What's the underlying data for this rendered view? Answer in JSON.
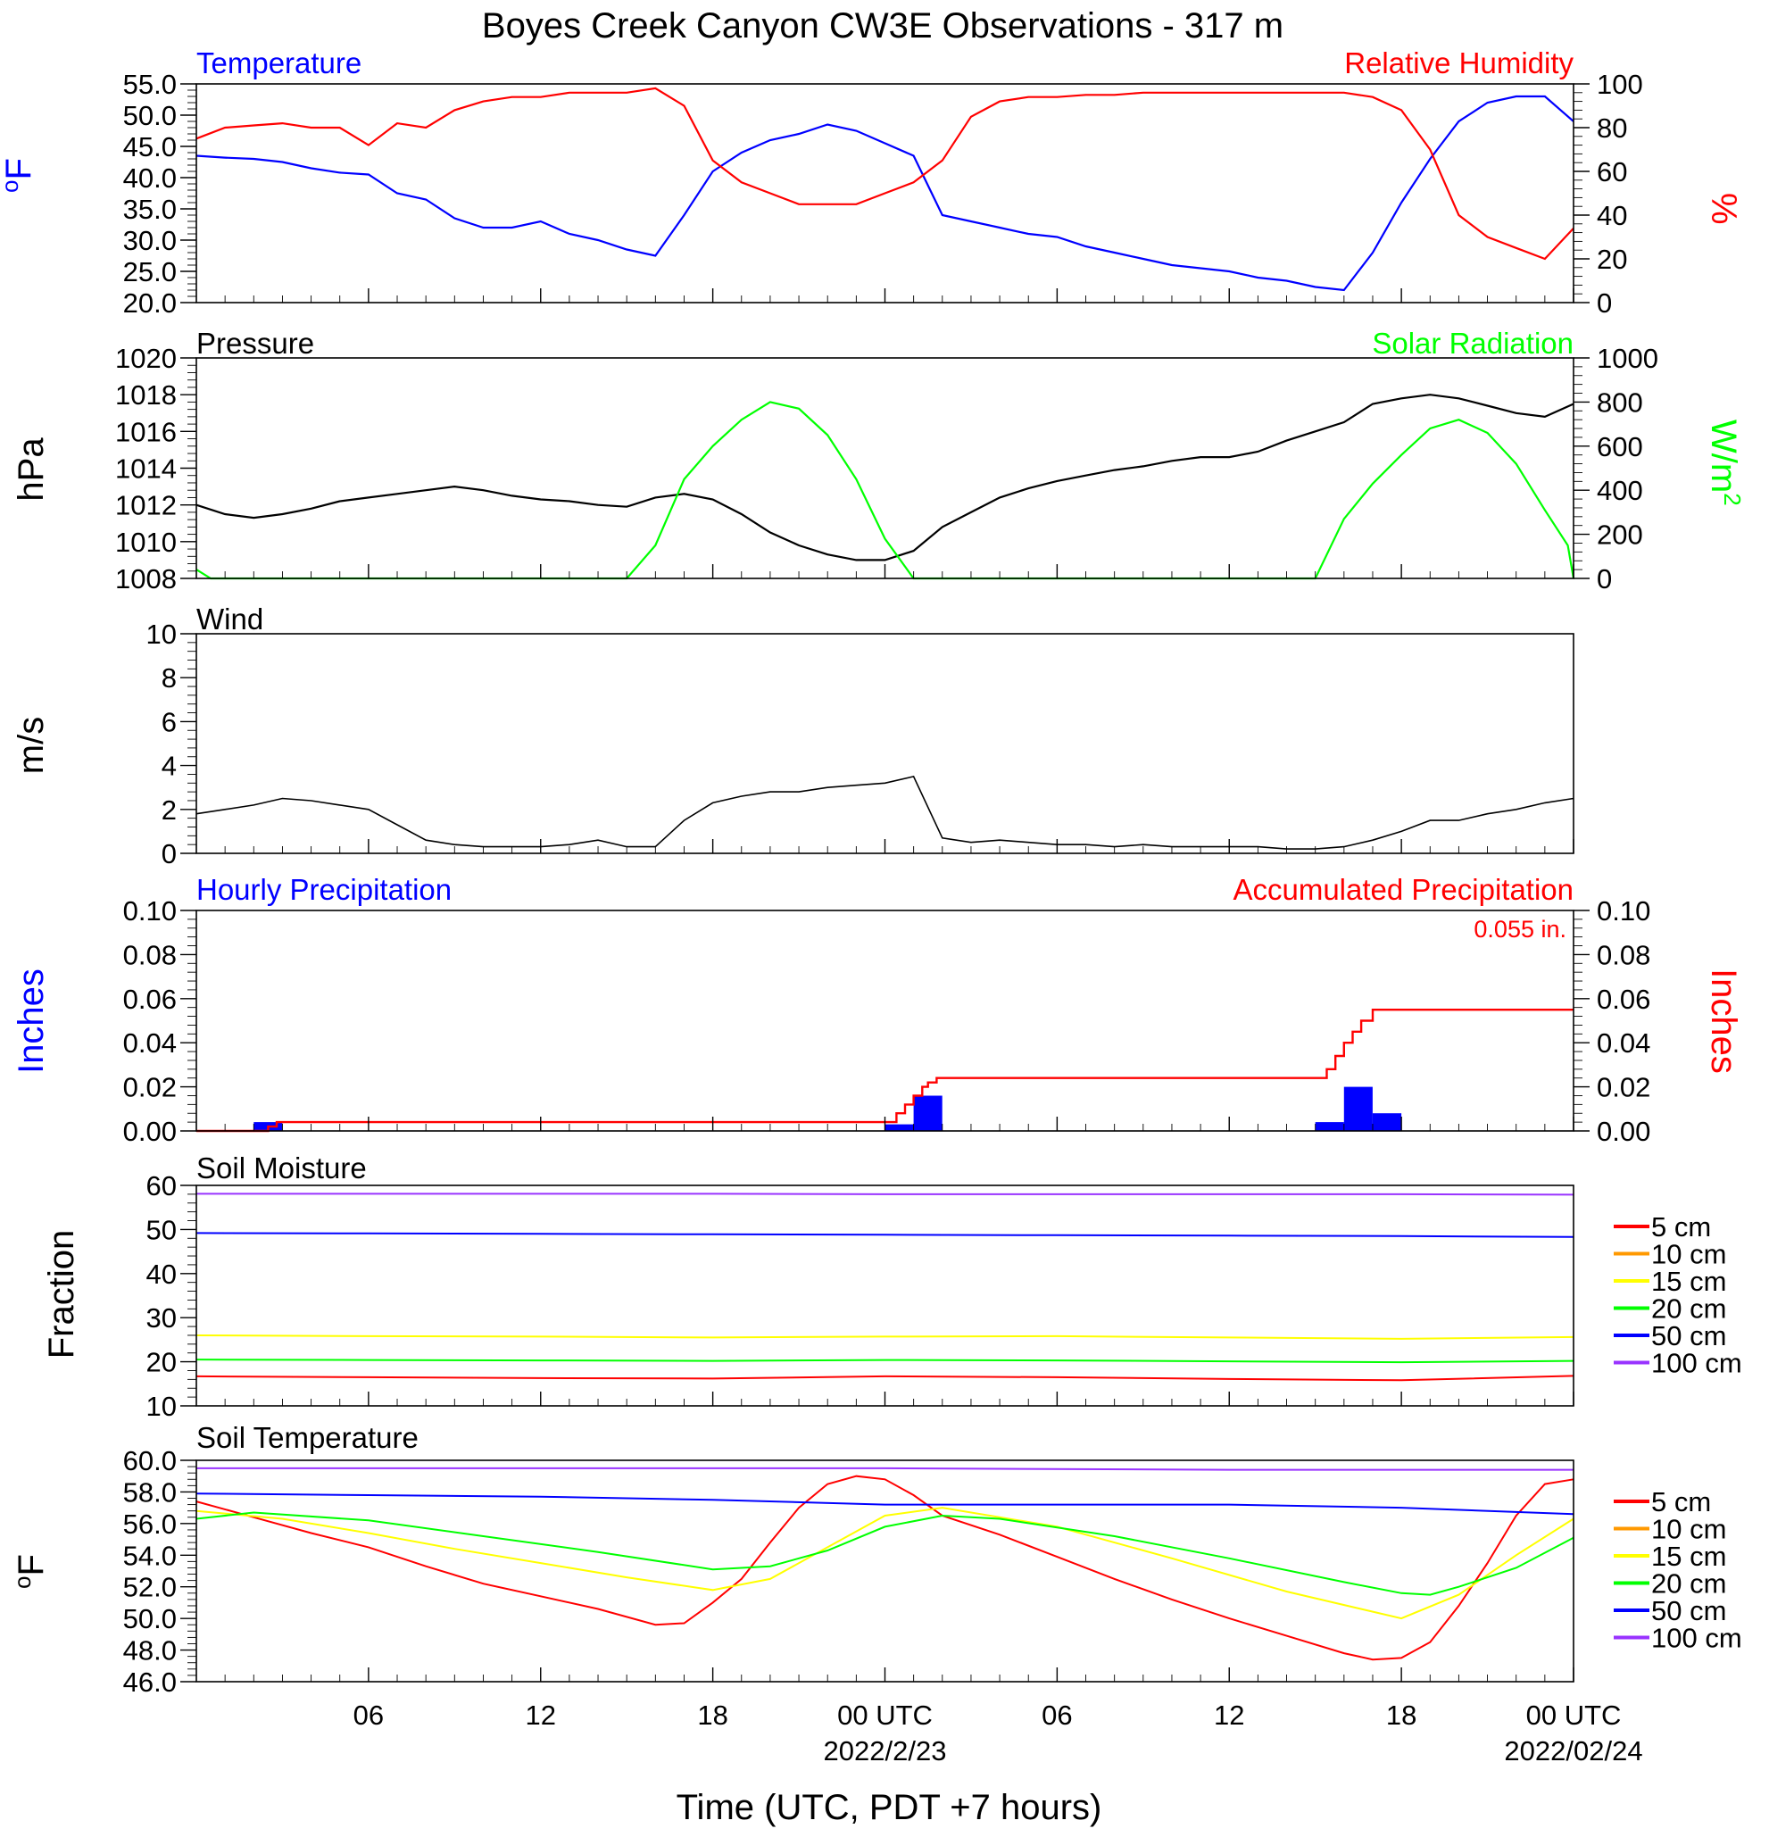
{
  "title": "Boyes Creek Canyon CW3E Observations - 317 m",
  "xlabel": "Time (UTC, PDT +7 hours)",
  "xaxis": {
    "range_hours": [
      0,
      48
    ],
    "ticks": [
      {
        "h": 6,
        "label": "06"
      },
      {
        "h": 12,
        "label": "12"
      },
      {
        "h": 18,
        "label": "18"
      },
      {
        "h": 24,
        "label": "00 UTC",
        "date": "2022/2/23"
      },
      {
        "h": 30,
        "label": "06"
      },
      {
        "h": 36,
        "label": "12"
      },
      {
        "h": 42,
        "label": "18"
      },
      {
        "h": 48,
        "label": "00 UTC",
        "date": "2022/02/24"
      }
    ]
  },
  "colors": {
    "blue": "#0000ff",
    "red": "#ff0000",
    "green": "#00ff00",
    "black": "#000000"
  },
  "panels": {
    "temp_rh": {
      "left_title": "Temperature",
      "right_title": "Relative Humidity",
      "left_unit": "oF",
      "right_unit": "%",
      "left_ticks": [
        "20.0",
        "25.0",
        "30.0",
        "35.0",
        "40.0",
        "45.0",
        "50.0",
        "55.0"
      ],
      "right_ticks": [
        "0",
        "20",
        "40",
        "60",
        "80",
        "100"
      ]
    },
    "pressure_solar": {
      "left_title": "Pressure",
      "right_title": "Solar Radiation",
      "left_unit": "hPa",
      "right_unit": "W/m2",
      "left_ticks": [
        "1008",
        "1010",
        "1012",
        "1014",
        "1016",
        "1018",
        "1020"
      ],
      "right_ticks": [
        "0",
        "200",
        "400",
        "600",
        "800",
        "1000"
      ]
    },
    "wind": {
      "left_title": "Wind",
      "left_unit": "m/s",
      "left_ticks": [
        "0",
        "2",
        "4",
        "6",
        "8",
        "10"
      ]
    },
    "precip": {
      "left_title": "Hourly Precipitation",
      "right_title": "Accumulated Precipitation",
      "total_label": "0.055 in.",
      "left_unit": "Inches",
      "right_unit": "Inches",
      "left_ticks": [
        "0.00",
        "0.02",
        "0.04",
        "0.06",
        "0.08",
        "0.10"
      ],
      "right_ticks": [
        "0.00",
        "0.02",
        "0.04",
        "0.06",
        "0.08",
        "0.10"
      ]
    },
    "soil_moisture": {
      "left_title": "Soil Moisture",
      "left_unit": "Fraction",
      "left_ticks": [
        "10",
        "20",
        "30",
        "40",
        "50",
        "60"
      ]
    },
    "soil_temp": {
      "left_title": "Soil Temperature",
      "left_unit": "oF",
      "left_ticks": [
        "46.0",
        "48.0",
        "50.0",
        "52.0",
        "54.0",
        "56.0",
        "58.0",
        "60.0"
      ]
    }
  },
  "legend": [
    {
      "label": "5 cm",
      "color": "#ff0000"
    },
    {
      "label": "10 cm",
      "color": "#ff9900"
    },
    {
      "label": "15 cm",
      "color": "#ffff00"
    },
    {
      "label": "20 cm",
      "color": "#00ff00"
    },
    {
      "label": "50 cm",
      "color": "#0000ff"
    },
    {
      "label": "100 cm",
      "color": "#9933ff"
    }
  ],
  "chart_data": [
    {
      "type": "line",
      "title": "Temperature / Relative Humidity",
      "x_units": "hours since 2022-02-22 00 UTC",
      "ylim": [
        20,
        55
      ],
      "y2lim": [
        0,
        100
      ],
      "series": [
        {
          "name": "Temperature",
          "axis": "left",
          "color": "#0000ff",
          "x": [
            0,
            1,
            2,
            3,
            4,
            5,
            6,
            7,
            8,
            9,
            10,
            11,
            12,
            13,
            14,
            15,
            16,
            17,
            18,
            19,
            20,
            21,
            22,
            23,
            24,
            25,
            26,
            27,
            28,
            29,
            30,
            31,
            32,
            33,
            34,
            35,
            36,
            37,
            38,
            39,
            40,
            41,
            42,
            43,
            44,
            45,
            46,
            47,
            48
          ],
          "y": [
            43.5,
            43.2,
            43,
            42.5,
            41.5,
            40.8,
            40.5,
            37.5,
            36.5,
            33.5,
            32,
            32,
            33,
            31,
            30,
            28.5,
            27.5,
            34,
            41,
            44,
            46,
            47,
            48.5,
            47.5,
            45.5,
            43.5,
            34,
            33,
            32,
            31,
            30.5,
            29,
            28,
            27,
            26,
            25.5,
            25,
            24,
            23.5,
            22.5,
            22,
            28,
            36,
            43,
            49,
            52,
            53,
            53,
            49
          ]
        },
        {
          "name": "Relative Humidity",
          "axis": "right",
          "color": "#ff0000",
          "x": [
            0,
            1,
            2,
            3,
            4,
            5,
            6,
            7,
            8,
            9,
            10,
            11,
            12,
            13,
            14,
            15,
            16,
            17,
            18,
            19,
            20,
            21,
            22,
            23,
            24,
            25,
            26,
            27,
            28,
            29,
            30,
            31,
            32,
            33,
            34,
            35,
            36,
            37,
            38,
            39,
            40,
            41,
            42,
            43,
            44,
            45,
            46,
            47,
            48
          ],
          "y": [
            75,
            80,
            81,
            82,
            80,
            80,
            72,
            82,
            80,
            88,
            92,
            94,
            94,
            96,
            96,
            96,
            98,
            90,
            65,
            55,
            50,
            45,
            45,
            45,
            50,
            55,
            65,
            85,
            92,
            94,
            94,
            95,
            95,
            96,
            96,
            96,
            96,
            96,
            96,
            96,
            96,
            94,
            88,
            70,
            40,
            30,
            25,
            20,
            34
          ]
        }
      ]
    },
    {
      "type": "line",
      "title": "Pressure / Solar Radiation",
      "ylim": [
        1008,
        1020
      ],
      "y2lim": [
        0,
        1000
      ],
      "series": [
        {
          "name": "Pressure",
          "axis": "left",
          "color": "#000000",
          "x": [
            0,
            1,
            2,
            3,
            4,
            5,
            6,
            7,
            8,
            9,
            10,
            11,
            12,
            13,
            14,
            15,
            16,
            17,
            18,
            19,
            20,
            21,
            22,
            23,
            24,
            25,
            26,
            27,
            28,
            29,
            30,
            31,
            32,
            33,
            34,
            35,
            36,
            37,
            38,
            39,
            40,
            41,
            42,
            43,
            44,
            45,
            46,
            47,
            48
          ],
          "y": [
            1012,
            1011.5,
            1011.3,
            1011.5,
            1011.8,
            1012.2,
            1012.4,
            1012.6,
            1012.8,
            1013,
            1012.8,
            1012.5,
            1012.3,
            1012.2,
            1012,
            1011.9,
            1012.4,
            1012.6,
            1012.3,
            1011.5,
            1010.5,
            1009.8,
            1009.3,
            1009,
            1009,
            1009.5,
            1010.8,
            1011.6,
            1012.4,
            1012.9,
            1013.3,
            1013.6,
            1013.9,
            1014.1,
            1014.4,
            1014.6,
            1014.6,
            1014.9,
            1015.5,
            1016,
            1016.5,
            1017.5,
            1017.8,
            1018,
            1017.8,
            1017.4,
            1017,
            1016.8,
            1017.5
          ]
        },
        {
          "name": "Solar Radiation",
          "axis": "right",
          "color": "#00ff00",
          "x": [
            0,
            0.5,
            1,
            14,
            15,
            16,
            17,
            18,
            19,
            20,
            21,
            22,
            23,
            24,
            25,
            38,
            39,
            40,
            41,
            42,
            43,
            44,
            45,
            46,
            47,
            47.8,
            48
          ],
          "y": [
            40,
            0,
            0,
            0,
            0,
            150,
            450,
            600,
            720,
            800,
            770,
            650,
            450,
            180,
            0,
            0,
            0,
            270,
            430,
            560,
            680,
            720,
            660,
            520,
            310,
            150,
            0
          ]
        }
      ]
    },
    {
      "type": "line",
      "title": "Wind",
      "ylim": [
        0,
        10
      ],
      "series": [
        {
          "name": "Wind",
          "axis": "left",
          "color": "#000000",
          "x": [
            0,
            1,
            2,
            3,
            4,
            5,
            6,
            7,
            8,
            9,
            10,
            11,
            12,
            13,
            14,
            15,
            16,
            17,
            18,
            19,
            20,
            21,
            22,
            23,
            24,
            25,
            26,
            27,
            28,
            29,
            30,
            31,
            32,
            33,
            34,
            35,
            36,
            37,
            38,
            39,
            40,
            41,
            42,
            43,
            44,
            45,
            46,
            47,
            48
          ],
          "y": [
            1.8,
            2,
            2.2,
            2.5,
            2.4,
            2.2,
            2,
            1.3,
            0.6,
            0.4,
            0.3,
            0.3,
            0.3,
            0.4,
            0.6,
            0.3,
            0.3,
            1.5,
            2.3,
            2.6,
            2.8,
            2.8,
            3,
            3.1,
            3.2,
            3.5,
            0.7,
            0.5,
            0.6,
            0.5,
            0.4,
            0.4,
            0.3,
            0.4,
            0.3,
            0.3,
            0.3,
            0.3,
            0.2,
            0.2,
            0.3,
            0.6,
            1,
            1.5,
            1.5,
            1.8,
            2,
            2.3,
            2.5
          ]
        }
      ]
    },
    {
      "type": "bar",
      "title": "Hourly / Accumulated Precipitation",
      "ylim": [
        0,
        0.1
      ],
      "y2lim": [
        0,
        0.1
      ],
      "series": [
        {
          "name": "Hourly Precipitation",
          "axis": "left",
          "color": "#0000ff",
          "x": [
            2,
            24,
            25,
            39,
            40,
            41
          ],
          "y": [
            0.004,
            0.003,
            0.016,
            0.004,
            0.02,
            0.008
          ]
        },
        {
          "name": "Accumulated Precipitation",
          "axis": "right",
          "color": "#ff0000",
          "kind": "step",
          "x": [
            0,
            2,
            2.5,
            2.8,
            24,
            24.4,
            24.7,
            25,
            25.3,
            25.5,
            25.8,
            39,
            39.4,
            39.7,
            40,
            40.3,
            40.6,
            41,
            48
          ],
          "y": [
            0,
            0,
            0.002,
            0.004,
            0.004,
            0.008,
            0.012,
            0.016,
            0.02,
            0.022,
            0.024,
            0.024,
            0.028,
            0.034,
            0.04,
            0.045,
            0.05,
            0.055,
            0.055
          ]
        }
      ]
    },
    {
      "type": "line",
      "title": "Soil Moisture",
      "ylim": [
        10,
        60
      ],
      "series": [
        {
          "name": "5 cm",
          "color": "#ff0000",
          "x": [
            0,
            6,
            12,
            18,
            24,
            30,
            36,
            42,
            48
          ],
          "y": [
            16.7,
            16.5,
            16.3,
            16.2,
            16.7,
            16.5,
            16.1,
            15.8,
            16.8
          ]
        },
        {
          "name": "15 cm",
          "color": "#ffff00",
          "x": [
            0,
            6,
            12,
            18,
            24,
            30,
            36,
            42,
            48
          ],
          "y": [
            26,
            25.8,
            25.7,
            25.5,
            25.7,
            25.8,
            25.5,
            25.2,
            25.6
          ]
        },
        {
          "name": "20 cm",
          "color": "#00ff00",
          "x": [
            0,
            6,
            12,
            18,
            24,
            30,
            36,
            42,
            48
          ],
          "y": [
            20.5,
            20.4,
            20.3,
            20.2,
            20.4,
            20.3,
            20.1,
            19.9,
            20.2
          ]
        },
        {
          "name": "50 cm",
          "color": "#0000ff",
          "x": [
            0,
            6,
            12,
            18,
            24,
            30,
            36,
            42,
            48
          ],
          "y": [
            49.2,
            49.1,
            49,
            48.9,
            48.8,
            48.7,
            48.6,
            48.5,
            48.3
          ]
        },
        {
          "name": "100 cm",
          "color": "#9933ff",
          "x": [
            0,
            6,
            12,
            18,
            24,
            30,
            36,
            42,
            48
          ],
          "y": [
            58.1,
            58.1,
            58.1,
            58.1,
            58,
            58,
            58,
            58,
            57.9
          ]
        }
      ]
    },
    {
      "type": "line",
      "title": "Soil Temperature",
      "ylim": [
        46,
        60
      ],
      "series": [
        {
          "name": "5 cm",
          "color": "#ff0000",
          "x": [
            0,
            2,
            4,
            6,
            8,
            10,
            12,
            14,
            16,
            17,
            18,
            19,
            20,
            21,
            22,
            23,
            24,
            25,
            26,
            28,
            30,
            32,
            34,
            36,
            38,
            40,
            41,
            42,
            43,
            44,
            45,
            46,
            47,
            48
          ],
          "y": [
            57.4,
            56.4,
            55.4,
            54.5,
            53.3,
            52.2,
            51.4,
            50.6,
            49.6,
            49.7,
            51,
            52.5,
            54.8,
            57,
            58.5,
            59,
            58.8,
            57.8,
            56.5,
            55.3,
            53.9,
            52.5,
            51.2,
            50,
            48.9,
            47.8,
            47.4,
            47.5,
            48.5,
            50.8,
            53.5,
            56.5,
            58.5,
            58.8
          ]
        },
        {
          "name": "15 cm",
          "color": "#ffff00",
          "x": [
            0,
            3,
            6,
            9,
            12,
            15,
            18,
            20,
            22,
            24,
            26,
            30,
            34,
            38,
            42,
            44,
            46,
            48
          ],
          "y": [
            56.8,
            56.3,
            55.4,
            54.4,
            53.5,
            52.6,
            51.8,
            52.5,
            54.5,
            56.5,
            57,
            55.8,
            53.8,
            51.7,
            50,
            51.5,
            54,
            56.3
          ]
        },
        {
          "name": "20 cm",
          "color": "#00ff00",
          "x": [
            0,
            2,
            6,
            10,
            14,
            18,
            20,
            22,
            24,
            26,
            28,
            32,
            36,
            40,
            42,
            43,
            44,
            46,
            48
          ],
          "y": [
            56.3,
            56.7,
            56.2,
            55.2,
            54.2,
            53.1,
            53.3,
            54.3,
            55.8,
            56.5,
            56.3,
            55.2,
            53.8,
            52.3,
            51.6,
            51.5,
            52,
            53.2,
            55.1
          ]
        },
        {
          "name": "50 cm",
          "color": "#0000ff",
          "x": [
            0,
            6,
            12,
            18,
            24,
            30,
            36,
            42,
            48
          ],
          "y": [
            57.9,
            57.8,
            57.7,
            57.5,
            57.2,
            57.2,
            57.2,
            57,
            56.6
          ]
        },
        {
          "name": "100 cm",
          "color": "#9933ff",
          "x": [
            0,
            12,
            24,
            36,
            48
          ],
          "y": [
            59.5,
            59.5,
            59.5,
            59.4,
            59.4
          ]
        }
      ]
    }
  ]
}
